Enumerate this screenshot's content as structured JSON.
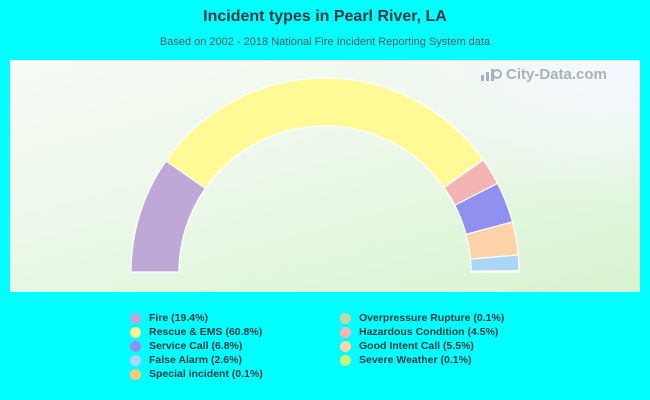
{
  "title": "Incident types in Pearl River, LA",
  "subtitle": "Based on 2002 - 2018 National Fire Incident Reporting System data",
  "watermark": "City-Data.com",
  "chart_data": {
    "type": "pie",
    "variant": "half-donut",
    "title": "Incident types in Pearl River, LA",
    "subtitle": "Based on 2002 - 2018 National Fire Incident Reporting System data",
    "legend_position": "bottom",
    "slices": [
      {
        "label": "Fire (19.4%)",
        "value": 19.4,
        "color": "#bea8d8"
      },
      {
        "label": "Rescue & EMS (60.8%)",
        "value": 60.8,
        "color": "#fffa96"
      },
      {
        "label": "Special incident (0.1%)",
        "value": 0.1,
        "color": "#f5c97a"
      },
      {
        "label": "Hazardous Condition (4.5%)",
        "value": 4.5,
        "color": "#f5b4b4"
      },
      {
        "label": "Service Call (6.8%)",
        "value": 6.8,
        "color": "#9190f0"
      },
      {
        "label": "Good Intent Call (5.5%)",
        "value": 5.5,
        "color": "#fed3a9"
      },
      {
        "label": "False Alarm (2.6%)",
        "value": 2.6,
        "color": "#acd6f8"
      },
      {
        "label": "Severe Weather (0.1%)",
        "value": 0.1,
        "color": "#c9f47f"
      },
      {
        "label": "Overpressure Rupture (0.1%)",
        "value": 0.1,
        "color": "#c3d6a4"
      }
    ],
    "legend": [
      {
        "label": "Fire (19.4%)",
        "color": "#bea8d8"
      },
      {
        "label": "Overpressure Rupture (0.1%)",
        "color": "#c3d6a4"
      },
      {
        "label": "Rescue & EMS (60.8%)",
        "color": "#fffa96"
      },
      {
        "label": "Hazardous Condition (4.5%)",
        "color": "#f5b4b4"
      },
      {
        "label": "Service Call (6.8%)",
        "color": "#9190f0"
      },
      {
        "label": "Good Intent Call (5.5%)",
        "color": "#fed3a9"
      },
      {
        "label": "False Alarm (2.6%)",
        "color": "#acd6f8"
      },
      {
        "label": "Severe Weather (0.1%)",
        "color": "#c9f47f"
      },
      {
        "label": "Special incident (0.1%)",
        "color": "#f5c97a"
      }
    ]
  }
}
